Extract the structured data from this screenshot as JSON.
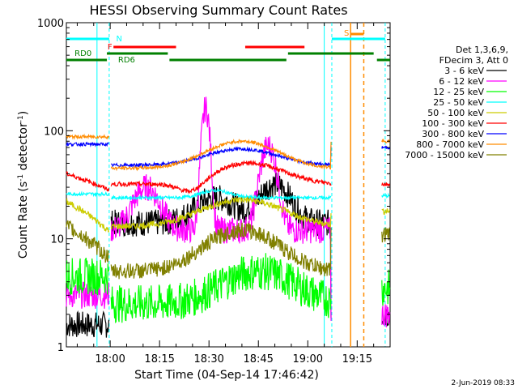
{
  "chart_data": {
    "type": "line",
    "title": "HESSI Observing Summary Count Rates",
    "xlabel": "Start Time (04-Sep-14 17:46:42)",
    "ylabel": "Count Rate (s⁻¹ detector⁻¹)",
    "ylabel_parts": [
      "Count Rate (s",
      "-1",
      " detector",
      "-1",
      ")"
    ],
    "yscale": "log",
    "ylim": [
      1,
      1000
    ],
    "xlim": [
      "17:46:42",
      "19:25:00"
    ],
    "x_ticks": [
      "18:00",
      "18:15",
      "18:30",
      "18:45",
      "19:00",
      "19:15"
    ],
    "y_ticks": [
      {
        "label": "1",
        "value": 1
      },
      {
        "label": "10",
        "value": 10
      },
      {
        "label": "100",
        "value": 100
      },
      {
        "label": "1000",
        "value": 1000
      }
    ],
    "legend_header": [
      "Det 1,3,6,9,",
      "FDecim 3, Att 0"
    ],
    "legend_placement": "right",
    "series": [
      {
        "name": "3 - 6 keV",
        "color": "#000000"
      },
      {
        "name": "6 - 12 keV",
        "color": "#ff00ff"
      },
      {
        "name": "12 - 25 keV",
        "color": "#00ff00"
      },
      {
        "name": "25 - 50 keV",
        "color": "#00ffff"
      },
      {
        "name": "50 - 100 keV",
        "color": "#cccc00"
      },
      {
        "name": "100 - 300 keV",
        "color": "#ff0000"
      },
      {
        "name": "300 - 800 keV",
        "color": "#0000ff"
      },
      {
        "name": "800 - 7000 keV",
        "color": "#ff8c00"
      },
      {
        "name": "7000 - 15000 keV",
        "color": "#808000"
      }
    ],
    "flag_labels": [
      {
        "text": "N",
        "color": "#00ffff"
      },
      {
        "text": "F",
        "color": "#ff0000"
      },
      {
        "text": "S",
        "color": "#ff8c00"
      },
      {
        "text": "RD0",
        "color": "#008000"
      },
      {
        "text": "RD6",
        "color": "#008000"
      }
    ],
    "footer_date": "2-Jun-2019 08:33"
  }
}
